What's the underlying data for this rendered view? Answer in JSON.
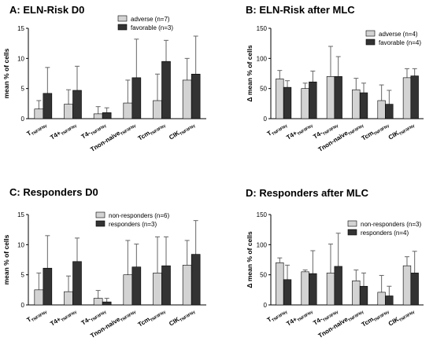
{
  "chart_data": [
    {
      "type": "bar",
      "title": "A: ELN-Risk D0",
      "ylabel": "mean % of cells",
      "ylim": [
        0,
        15
      ],
      "yticks": [
        0,
        5,
        10,
        15
      ],
      "categories": [
        {
          "main": "T",
          "sub": "TNF/IFNγ"
        },
        {
          "main": "T4+",
          "sub": "TNF/IFNγ"
        },
        {
          "main": "T4-",
          "sub": "TNF/IFNγ"
        },
        {
          "main": "Tnon-naive",
          "sub": "TNF/IFNγ"
        },
        {
          "main": "Tcm",
          "sub": "TNF/IFNγ"
        },
        {
          "main": "CIK",
          "sub": "TNF/IFNγ"
        }
      ],
      "series": [
        {
          "name": "adverse (n=7)",
          "color": "#d3d3d3",
          "values": [
            1.6,
            2.4,
            0.8,
            2.6,
            3.0,
            6.4
          ],
          "errors": [
            1.4,
            2.4,
            1.2,
            3.8,
            4.4,
            3.6
          ]
        },
        {
          "name": "favorable (n=3)",
          "color": "#333333",
          "values": [
            4.2,
            4.7,
            1.0,
            6.8,
            9.5,
            7.4
          ],
          "errors": [
            4.3,
            4.0,
            0.8,
            6.4,
            3.5,
            6.3
          ]
        }
      ],
      "legend": "top-right"
    },
    {
      "type": "bar",
      "title": "B: ELN-Risk after MLC",
      "ylabel": "Δ mean % of cells",
      "ylim": [
        0,
        150
      ],
      "yticks": [
        0,
        50,
        100,
        150
      ],
      "categories": [
        {
          "main": "T",
          "sub": "TNF/IFNγ"
        },
        {
          "main": "T4+",
          "sub": "TNF/IFNγ"
        },
        {
          "main": "T4-",
          "sub": "TNF/IFNγ"
        },
        {
          "main": "Tnon-naive",
          "sub": "TNF/IFNγ"
        },
        {
          "main": "Tcm",
          "sub": "TNF/IFNγ"
        },
        {
          "main": "CIK",
          "sub": "TNF/IFNγ"
        }
      ],
      "series": [
        {
          "name": "adverse (n=4)",
          "color": "#d3d3d3",
          "values": [
            66,
            50,
            70,
            48,
            30,
            68
          ],
          "errors": [
            14,
            9,
            50,
            19,
            26,
            15
          ]
        },
        {
          "name": "favorable (n=4)",
          "color": "#333333",
          "values": [
            52,
            61,
            70,
            43,
            24,
            71
          ],
          "errors": [
            11,
            18,
            33,
            16,
            23,
            12
          ]
        }
      ],
      "legend": "top-right"
    },
    {
      "type": "bar",
      "title": "C: Responders D0",
      "ylabel": "mean % of cells",
      "ylim": [
        0,
        15
      ],
      "yticks": [
        0,
        5,
        10,
        15
      ],
      "categories": [
        {
          "main": "T",
          "sub": "TNF/IFNγ"
        },
        {
          "main": "T4+",
          "sub": "TNF/IFNγ"
        },
        {
          "main": "T4-",
          "sub": "TNF/IFNγ"
        },
        {
          "main": "Tnon-naive",
          "sub": "TNF/IFNγ"
        },
        {
          "main": "Tcm",
          "sub": "TNF/IFNγ"
        },
        {
          "main": "CIK",
          "sub": "TNF/IFNγ"
        }
      ],
      "series": [
        {
          "name": "non-responders (n=6)",
          "color": "#d3d3d3",
          "values": [
            2.5,
            2.2,
            1.1,
            5.0,
            5.3,
            6.6
          ],
          "errors": [
            2.8,
            2.6,
            1.3,
            5.7,
            6.0,
            4.1
          ]
        },
        {
          "name": "responders (n=3)",
          "color": "#333333",
          "values": [
            6.1,
            7.2,
            0.5,
            6.3,
            6.5,
            8.4
          ],
          "errors": [
            5.4,
            3.9,
            0.6,
            3.8,
            4.8,
            5.6
          ]
        }
      ],
      "legend": "top-right"
    },
    {
      "type": "bar",
      "title": "D: Responders after MLC",
      "ylabel": "Δ mean % of cells",
      "ylim": [
        0,
        150
      ],
      "yticks": [
        0,
        50,
        100,
        150
      ],
      "categories": [
        {
          "main": "T",
          "sub": "TNF/IFNγ"
        },
        {
          "main": "T4+",
          "sub": "TNF/IFNγ"
        },
        {
          "main": "T4-",
          "sub": "TNF/IFNγ"
        },
        {
          "main": "Tnon-naive",
          "sub": "TNF/IFNγ"
        },
        {
          "main": "Tcm",
          "sub": "TNF/IFNγ"
        },
        {
          "main": "CIK",
          "sub": "TNF/IFNγ"
        }
      ],
      "series": [
        {
          "name": "non-responders (n=3)",
          "color": "#d3d3d3",
          "values": [
            70,
            55,
            53,
            40,
            21,
            65
          ],
          "errors": [
            8,
            3,
            48,
            18,
            28,
            15
          ]
        },
        {
          "name": "responders (n=4)",
          "color": "#333333",
          "values": [
            42,
            52,
            64,
            31,
            15,
            53
          ],
          "errors": [
            24,
            38,
            55,
            22,
            16,
            36
          ]
        }
      ],
      "legend": "top-right"
    }
  ]
}
